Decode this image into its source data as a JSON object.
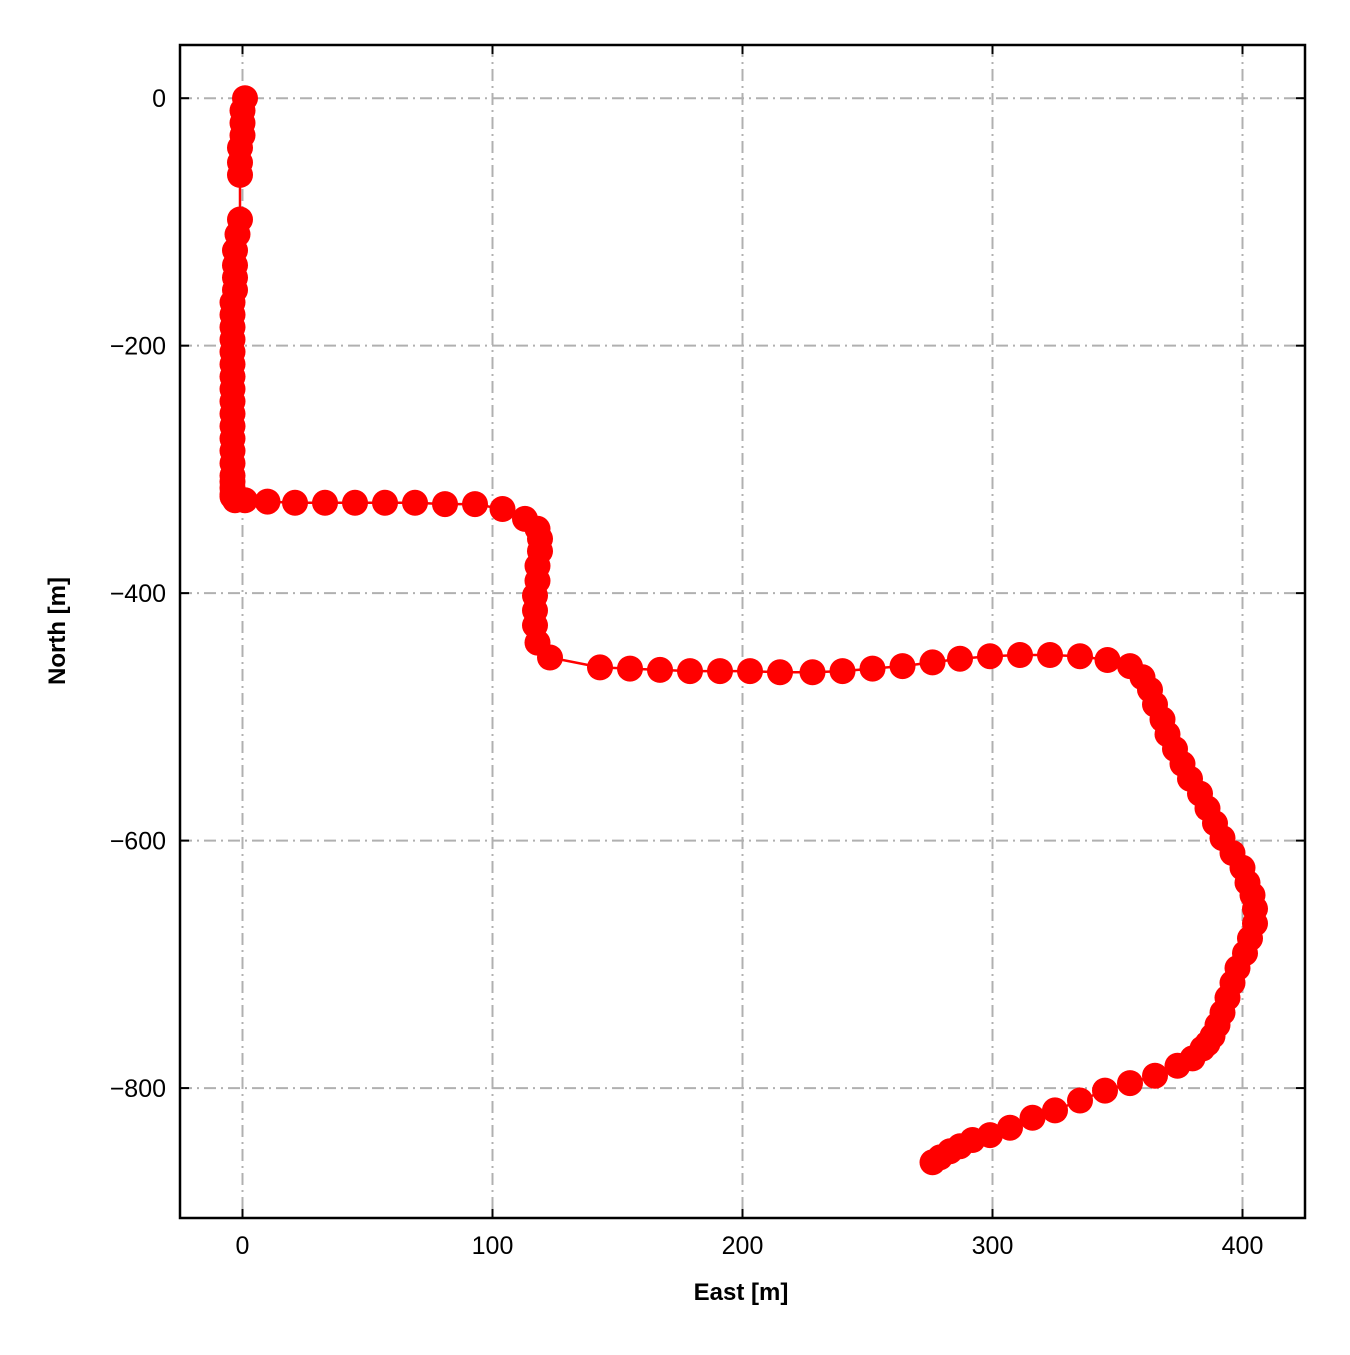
{
  "chart_data": {
    "type": "line",
    "title": "",
    "xlabel": "East [m]",
    "ylabel": "North [m]",
    "xlim": [
      -25,
      425
    ],
    "ylim": [
      -905,
      43
    ],
    "grid": true,
    "grid_style": "dash-dot",
    "legend": "none",
    "x_ticks": [
      0,
      100,
      200,
      300,
      400
    ],
    "x_tick_labels": [
      "0",
      "100",
      "200",
      "300",
      "400"
    ],
    "y_ticks": [
      0,
      -200,
      -400,
      -600,
      -800
    ],
    "y_tick_labels": [
      "0",
      "−200",
      "−400",
      "−600",
      "−800"
    ],
    "colors": {
      "series": "#ff0000",
      "grid": "#b0b0b0",
      "axes": "#000000"
    },
    "series": [
      {
        "marker": "circle",
        "x": [
          1,
          0,
          0,
          0,
          -1,
          -1,
          -1,
          -1,
          -2,
          -3,
          -3,
          -3,
          -3,
          -4,
          -4,
          -4,
          -4,
          -4,
          -4,
          -4,
          -4,
          -4,
          -4,
          -4,
          -4,
          -4,
          -4,
          -4,
          -4,
          -4,
          -4,
          -4,
          -3,
          1,
          10,
          21,
          33,
          45,
          57,
          69,
          81,
          93,
          104,
          113,
          118,
          119,
          119,
          118,
          118,
          117,
          117,
          117,
          118,
          123,
          143,
          155,
          167,
          179,
          191,
          203,
          215,
          228,
          240,
          252,
          264,
          276,
          287,
          299,
          311,
          323,
          335,
          346,
          355,
          360,
          363,
          365,
          368,
          370,
          373,
          376,
          379,
          383,
          386,
          389,
          392,
          396,
          400,
          402,
          404,
          405,
          405,
          403,
          401,
          398,
          396,
          394,
          392,
          390,
          388,
          386,
          384,
          380,
          374,
          365,
          355,
          345,
          335,
          325,
          316,
          307,
          299,
          292,
          287,
          283,
          279,
          276
        ],
        "y": [
          0,
          -10,
          -20,
          -30,
          -40,
          -52,
          -62,
          -98,
          -110,
          -123,
          -135,
          -145,
          -155,
          -165,
          -175,
          -185,
          -195,
          -205,
          -215,
          -225,
          -235,
          -245,
          -255,
          -265,
          -275,
          -285,
          -295,
          -305,
          -310,
          -315,
          -320,
          -322,
          -325,
          -325,
          -326,
          -327,
          -327,
          -327,
          -327,
          -327,
          -328,
          -328,
          -332,
          -340,
          -348,
          -356,
          -366,
          -378,
          -390,
          -402,
          -414,
          -426,
          -440,
          -452,
          -460,
          -461,
          -462,
          -463,
          -463,
          -463,
          -464,
          -464,
          -463,
          -461,
          -459,
          -456,
          -453,
          -451,
          -450,
          -450,
          -451,
          -454,
          -459,
          -468,
          -478,
          -490,
          -502,
          -514,
          -526,
          -538,
          -550,
          -562,
          -574,
          -586,
          -598,
          -610,
          -622,
          -634,
          -644,
          -655,
          -667,
          -679,
          -691,
          -703,
          -715,
          -727,
          -739,
          -749,
          -758,
          -764,
          -768,
          -776,
          -782,
          -790,
          -796,
          -802,
          -810,
          -818,
          -824,
          -832,
          -838,
          -842,
          -847,
          -851,
          -856,
          -860
        ]
      }
    ]
  }
}
